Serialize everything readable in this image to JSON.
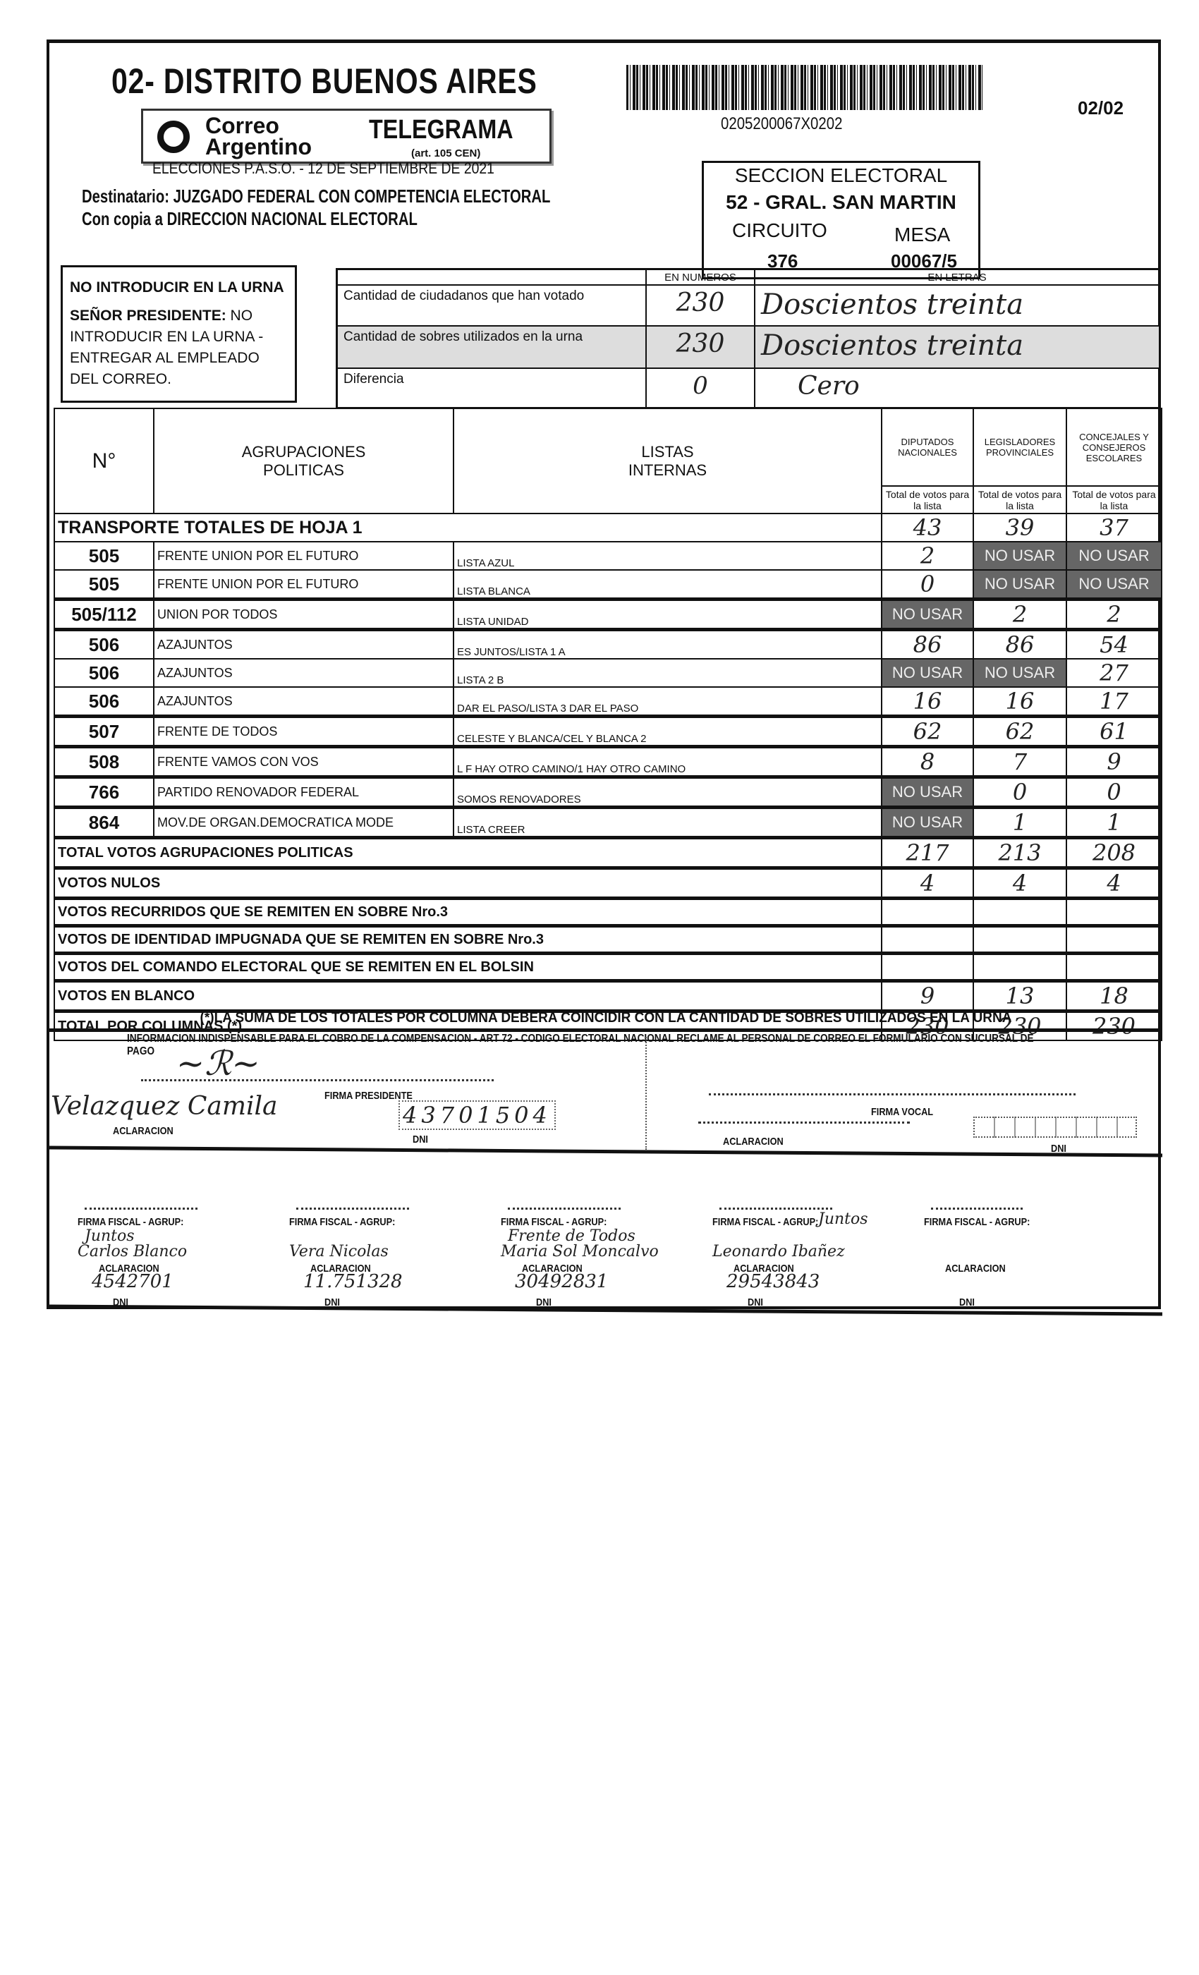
{
  "header": {
    "district_title": "02- DISTRITO BUENOS AIRES",
    "barcode_text": "0205200067X0202",
    "page": "02/02",
    "logo_text_1": "Correo",
    "logo_text_2": "Argentino",
    "telegram_label": "TELEGRAMA",
    "telegram_art": "(art. 105 CEN)",
    "election": "ELECCIONES P.A.S.O. - 12 DE SEPTIEMBRE DE 2021",
    "recipient": "Destinatario: JUZGADO FEDERAL CON COMPETENCIA ELECTORAL",
    "copy": "Con copia a DIRECCION NACIONAL ELECTORAL"
  },
  "section": {
    "label": "SECCION ELECTORAL",
    "value": "52 - GRAL. SAN MARTIN",
    "circuit_label": "CIRCUITO",
    "circuit": "376",
    "mesa_label": "MESA",
    "mesa": "00067/5"
  },
  "notice": {
    "title": "NO INTRODUCIR EN LA URNA",
    "body_bold": "SEÑOR PRESIDENTE:",
    "body": "NO INTRODUCIR EN LA URNA - ENTREGAR AL EMPLEADO DEL CORREO."
  },
  "summary": {
    "col_numbers": "EN NUMEROS",
    "col_letters": "EN LETRAS",
    "rows": [
      {
        "label": "Cantidad de ciudadanos que han votado",
        "number": "230",
        "letters": "Doscientos treinta"
      },
      {
        "label": "Cantidad de sobres utilizados en la urna",
        "number": "230",
        "letters": "Doscientos treinta"
      },
      {
        "label": "Diferencia",
        "number": "0",
        "letters": "Cero"
      }
    ]
  },
  "table": {
    "col_n": "N°",
    "col_agrup": "AGRUPACIONES POLITICAS",
    "col_listas": "LISTAS INTERNAS",
    "col_dip": "DIPUTADOS NACIONALES",
    "col_leg": "LEGISLADORES PROVINCIALES",
    "col_conc": "CONCEJALES Y CONSEJEROS ESCOLARES",
    "sub": "Total de votos para la lista",
    "transport_label": "TRANSPORTE TOTALES DE HOJA 1",
    "transport": [
      "43",
      "39",
      "37"
    ],
    "no_usar": "NO USAR",
    "rows": [
      {
        "n": "505",
        "agrup": "FRENTE UNION POR EL FUTURO",
        "lista": "LISTA AZUL",
        "v": [
          "2",
          "NO USAR",
          "NO USAR"
        ]
      },
      {
        "n": "505",
        "agrup": "FRENTE UNION POR EL FUTURO",
        "lista": "LISTA BLANCA",
        "v": [
          "0",
          "NO USAR",
          "NO USAR"
        ]
      },
      {
        "n": "505/112",
        "agrup": "UNION POR TODOS",
        "lista": "LISTA UNIDAD",
        "v": [
          "NO USAR",
          "2",
          "2"
        ]
      },
      {
        "n": "506",
        "agrup": "AZAJUNTOS",
        "lista": "ES JUNTOS/LISTA 1 A",
        "v": [
          "86",
          "86",
          "54"
        ]
      },
      {
        "n": "506",
        "agrup": "AZAJUNTOS",
        "lista": "LISTA 2 B",
        "v": [
          "NO USAR",
          "NO USAR",
          "27"
        ]
      },
      {
        "n": "506",
        "agrup": "AZAJUNTOS",
        "lista": "DAR EL PASO/LISTA 3 DAR EL PASO",
        "v": [
          "16",
          "16",
          "17"
        ]
      },
      {
        "n": "507",
        "agrup": "FRENTE DE TODOS",
        "lista": "CELESTE Y BLANCA/CEL Y BLANCA 2",
        "v": [
          "62",
          "62",
          "61"
        ]
      },
      {
        "n": "508",
        "agrup": "FRENTE VAMOS CON VOS",
        "lista": "L F HAY OTRO CAMINO/1 HAY OTRO CAMINO",
        "v": [
          "8",
          "7",
          "9"
        ]
      },
      {
        "n": "766",
        "agrup": "PARTIDO RENOVADOR FEDERAL",
        "lista": "SOMOS RENOVADORES",
        "v": [
          "NO USAR",
          "0",
          "0"
        ]
      },
      {
        "n": "864",
        "agrup": "MOV.DE ORGAN.DEMOCRATICA MODE",
        "lista": "LISTA CREER",
        "v": [
          "NO USAR",
          "1",
          "1"
        ]
      }
    ],
    "totals": [
      {
        "label": "TOTAL VOTOS AGRUPACIONES POLITICAS",
        "v": [
          "217",
          "213",
          "208"
        ]
      },
      {
        "label": "VOTOS NULOS",
        "v": [
          "4",
          "4",
          "4"
        ]
      },
      {
        "label": "VOTOS RECURRIDOS QUE SE REMITEN EN SOBRE Nro.3",
        "v": [
          "",
          "",
          ""
        ]
      },
      {
        "label": "VOTOS DE IDENTIDAD IMPUGNADA QUE SE REMITEN EN SOBRE Nro.3",
        "v": [
          "",
          "",
          ""
        ]
      },
      {
        "label": "VOTOS DEL COMANDO ELECTORAL QUE SE REMITEN EN EL BOLSIN",
        "v": [
          "",
          "",
          ""
        ]
      },
      {
        "label": "VOTOS EN BLANCO",
        "v": [
          "9",
          "13",
          "18"
        ]
      },
      {
        "label": "TOTAL POR COLUMNAS (*)",
        "v": [
          "230",
          "230",
          "230"
        ]
      }
    ],
    "footnote": "(*)LA SUMA DE LOS TOTALES POR COLUMNA DEBERA COINCIDIR CON LA CANTIDAD DE SOBRES UTILIZADOS EN LA URNA"
  },
  "signatures": {
    "info": "INFORMACION INDISPENSABLE PARA EL COBRO DE LA COMPENSACION - ART 72 - CODIGO ELECTORAL NACIONAL  RECLAME AL PERSONAL DE CORREO EL FORMULARIO CON SUCURSAL DE PAGO",
    "firma_presidente": "FIRMA PRESIDENTE",
    "aclaracion": "ACLARACION",
    "dni": "DNI",
    "firma_vocal": "FIRMA VOCAL",
    "firma_fiscal": "FIRMA FISCAL - AGRUP:",
    "president_name": "Velazquez Camila",
    "president_dni": "43701504",
    "fiscales": [
      {
        "agrup": "Juntos",
        "name": "Carlos Blanco",
        "dni": "4542701"
      },
      {
        "agrup": "",
        "name": "Vera Nicolas",
        "dni": "11.751328"
      },
      {
        "agrup": "Frente de Todos",
        "name": "Maria Sol Moncalvo",
        "dni": "30492831"
      },
      {
        "agrup": "Juntos",
        "name": "Leonardo Ibañez",
        "dni": "29543843"
      },
      {
        "agrup": "",
        "name": "",
        "dni": ""
      }
    ]
  }
}
